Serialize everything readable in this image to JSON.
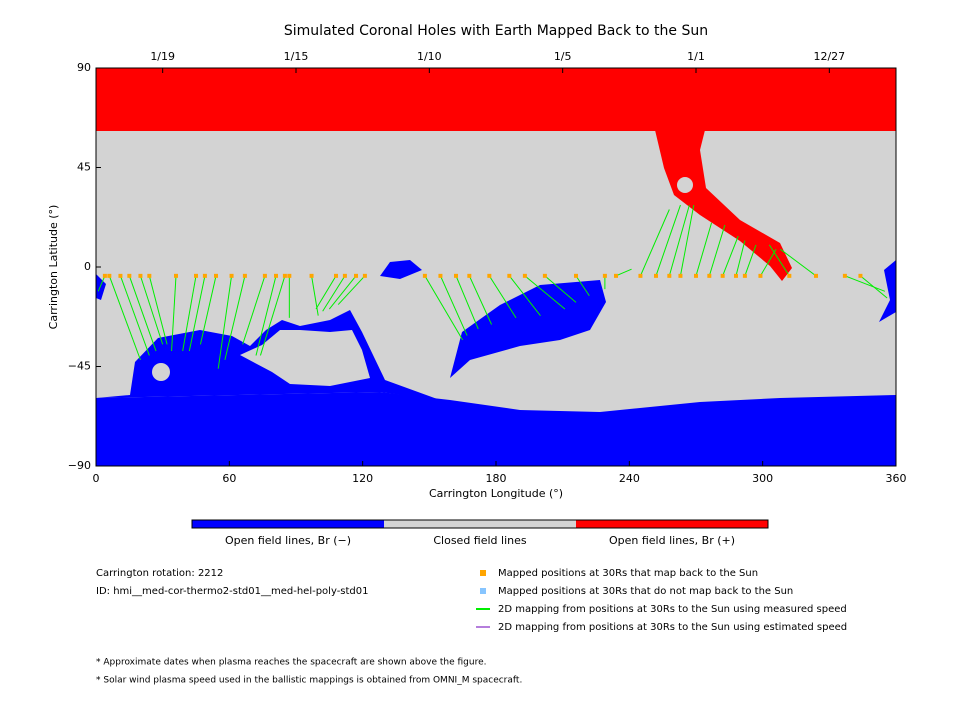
{
  "chart_data": {
    "type": "map",
    "title": "Simulated Coronal Holes with Earth Mapped Back to the Sun",
    "xlabel": "Carrington Longitude (°)",
    "ylabel": "Carrington Latitude (°)",
    "xlim": [
      0,
      360
    ],
    "ylim": [
      -90,
      90
    ],
    "xticks": [
      0,
      60,
      120,
      180,
      240,
      300,
      360
    ],
    "yticks": [
      {
        "value": 90,
        "label": "90"
      },
      {
        "value": 45,
        "label": "45"
      },
      {
        "value": 0,
        "label": "0"
      },
      {
        "value": -45,
        "label": "−45"
      },
      {
        "value": -90,
        "label": "−90"
      }
    ],
    "x2ticks": [
      {
        "value": 30,
        "label": "1/19"
      },
      {
        "value": 90,
        "label": "1/15"
      },
      {
        "value": 150,
        "label": "1/10"
      },
      {
        "value": 210,
        "label": "1/5"
      },
      {
        "value": 270,
        "label": "1/1"
      },
      {
        "value": 330,
        "label": "12/27"
      }
    ],
    "colorbar": [
      {
        "label": "Open field lines, Br (−)",
        "color": "#0000ff"
      },
      {
        "label": "Closed field lines",
        "color": "#d3d3d3"
      },
      {
        "label": "Open field lines, Br (+)",
        "color": "#ff0000"
      }
    ],
    "series": [
      {
        "name": "Mapped positions at 30Rs that map back to the Sun",
        "color": "#ffa500",
        "x": [
          4,
          6,
          11,
          15,
          20,
          24,
          36,
          45,
          49,
          54,
          61,
          67,
          76,
          81,
          85,
          87,
          97,
          108,
          112,
          117,
          121,
          148,
          155,
          162,
          168,
          177,
          186,
          193,
          202,
          216,
          229,
          234,
          245,
          252,
          258,
          263,
          270,
          276,
          282,
          288,
          292,
          299,
          312,
          324,
          337,
          344
        ],
        "y": [
          -4,
          -4,
          -4,
          -4,
          -4,
          -4,
          -4,
          -4,
          -4,
          -4,
          -4,
          -4,
          -4,
          -4,
          -4,
          -4,
          -4,
          -4,
          -4,
          -4,
          -4,
          -4,
          -4,
          -4,
          -4,
          -4,
          -4,
          -4,
          -4,
          -4,
          -4,
          -4,
          -4,
          -4,
          -4,
          -4,
          -4,
          -4,
          -4,
          -4,
          -4,
          -4,
          -4,
          -4,
          -4,
          -4
        ]
      },
      {
        "name": "Mapped positions at 30Rs that do not map back to the Sun",
        "color": "#87c5ff",
        "x": [],
        "y": []
      },
      {
        "name": "2D mapping from positions at 30Rs to the Sun using measured speed",
        "color": "#00ee00",
        "x": [
          1,
          20,
          24,
          27,
          30,
          32,
          34,
          39,
          42,
          47,
          55,
          58,
          66,
          72,
          74,
          87,
          100,
          99,
          102,
          105,
          109,
          165,
          167,
          172,
          178,
          189,
          200,
          211,
          216,
          222,
          229,
          241,
          258,
          263,
          267,
          269,
          277,
          283,
          289,
          292,
          297,
          306,
          303,
          308,
          355,
          356
        ],
        "y": [
          -11,
          -42,
          -40,
          -38,
          -35,
          -35,
          -38,
          -38,
          -38,
          -35,
          -46,
          -42,
          -35,
          -40,
          -40,
          -23,
          -22,
          -19,
          -20,
          -19,
          -17,
          -33,
          -31,
          -28,
          -26,
          -23,
          -22,
          -19,
          -16,
          -13,
          -10,
          -1,
          26,
          28,
          28,
          28,
          20,
          19,
          14,
          12,
          10,
          8,
          10,
          8,
          -11,
          -14
        ]
      },
      {
        "name": "2D mapping from positions at 30Rs to the Sun using estimated speed",
        "color": "#b57edc",
        "x": [],
        "y": []
      }
    ],
    "info": [
      "Carrington rotation: 2212",
      "ID: hmi__med-cor-thermo2-std01__med-hel-poly-std01"
    ],
    "notes": [
      "* Approximate dates when plasma reaches the spacecraft are shown above the figure.",
      "* Solar wind plasma speed used in the ballistic mappings is obtained from OMNI_M spacecraft."
    ]
  }
}
